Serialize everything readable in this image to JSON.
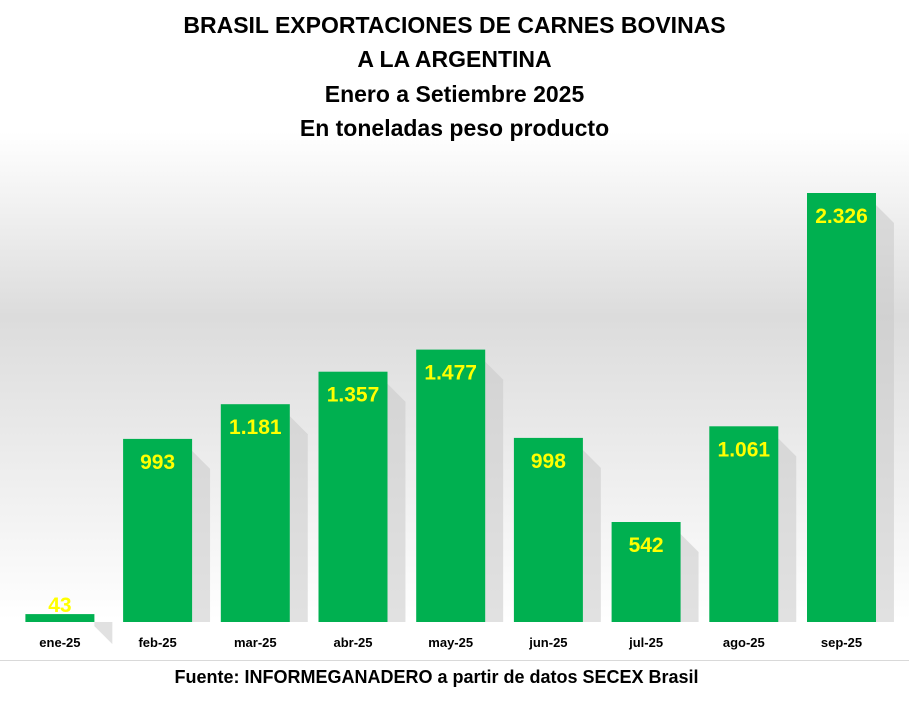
{
  "chart_data": {
    "type": "bar",
    "title_lines": [
      "BRASIL EXPORTACIONES DE CARNES BOVINAS",
      "A LA ARGENTINA",
      "Enero a Setiembre 2025",
      "En toneladas peso producto"
    ],
    "categories": [
      "ene-25",
      "feb-25",
      "mar-25",
      "abr-25",
      "may-25",
      "jun-25",
      "jul-25",
      "ago-25",
      "sep-25"
    ],
    "values": [
      43,
      993,
      1181,
      1357,
      1477,
      998,
      542,
      1061,
      2326
    ],
    "data_labels": [
      "43",
      "993",
      "1.181",
      "1.357",
      "1.477",
      "998",
      "542",
      "1.061",
      "2.326"
    ],
    "ylim": [
      0,
      2326
    ],
    "grid": false,
    "legend": "none",
    "bar_color": "#00b050",
    "label_color": "#ffff00",
    "source": "Fuente: INFORMEGANADERO a partir de datos SECEX Brasil"
  }
}
